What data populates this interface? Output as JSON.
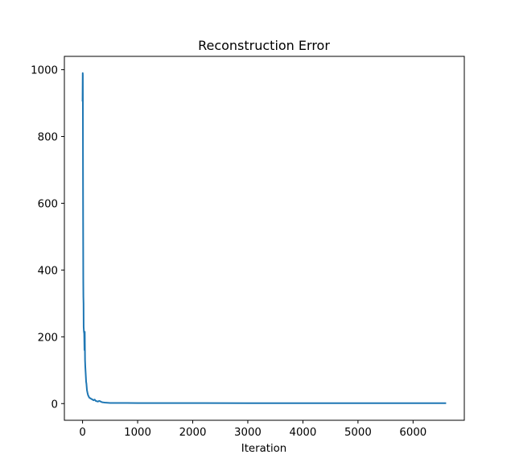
{
  "chart_data": {
    "type": "line",
    "title": "Reconstruction Error",
    "xlabel": "Iteration",
    "ylabel": "",
    "xlim": [
      -330,
      6930
    ],
    "ylim": [
      -50,
      1040
    ],
    "xticks": [
      0,
      1000,
      2000,
      3000,
      4000,
      5000,
      6000
    ],
    "yticks": [
      0,
      200,
      400,
      600,
      800,
      1000
    ],
    "grid": false,
    "legend": "none",
    "series": [
      {
        "color": "#1f77b4",
        "x": [
          0,
          3,
          5,
          8,
          10,
          13,
          15,
          18,
          20,
          25,
          30,
          35,
          40,
          45,
          50,
          55,
          60,
          65,
          70,
          75,
          80,
          90,
          100,
          110,
          120,
          140,
          160,
          180,
          200,
          220,
          240,
          260,
          280,
          300,
          320,
          340,
          360,
          380,
          400,
          450,
          500,
          600,
          800,
          1000,
          1500,
          2000,
          3000,
          4000,
          5000,
          6000,
          6600
        ],
        "y": [
          905,
          990,
          985,
          700,
          550,
          370,
          320,
          300,
          230,
          215,
          210,
          160,
          215,
          130,
          110,
          95,
          80,
          65,
          60,
          50,
          40,
          32,
          25,
          22,
          18,
          16,
          14,
          12,
          10,
          12,
          8,
          7,
          6,
          8,
          7,
          5,
          4,
          3.5,
          3,
          2.5,
          2,
          2,
          1.8,
          1.6,
          1.5,
          1.5,
          1.4,
          1.3,
          1.3,
          1.3,
          1.2
        ]
      }
    ]
  }
}
